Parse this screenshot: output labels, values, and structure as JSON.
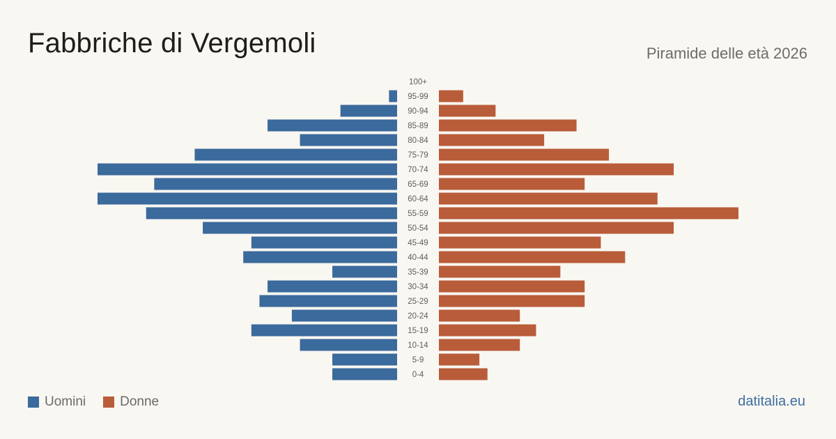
{
  "header": {
    "title": "Fabbriche di Vergemoli",
    "subtitle": "Piramide delle età 2026"
  },
  "legend": {
    "men_label": "Uomini",
    "women_label": "Donne"
  },
  "footer": {
    "site": "datitalia.eu"
  },
  "colors": {
    "men": "#3b6a9c",
    "women": "#b95c3a",
    "background": "#f9f7f2"
  },
  "chart_data": {
    "type": "bar",
    "orientation": "horizontal-pyramid",
    "categories": [
      "100+",
      "95-99",
      "90-94",
      "85-89",
      "80-84",
      "75-79",
      "70-74",
      "65-69",
      "60-64",
      "55-59",
      "50-54",
      "45-49",
      "40-44",
      "35-39",
      "30-34",
      "25-29",
      "20-24",
      "15-19",
      "10-14",
      "5-9",
      "0-4"
    ],
    "series": [
      {
        "name": "Uomini",
        "values": [
          0,
          1,
          7,
          16,
          12,
          25,
          37,
          30,
          37,
          31,
          24,
          18,
          19,
          8,
          16,
          17,
          13,
          18,
          12,
          8,
          8
        ]
      },
      {
        "name": "Donne",
        "values": [
          0,
          3,
          7,
          17,
          13,
          21,
          29,
          18,
          27,
          37,
          29,
          20,
          23,
          15,
          18,
          18,
          10,
          12,
          10,
          5,
          6
        ]
      }
    ],
    "legend_position": "bottom-left",
    "grid": false
  }
}
